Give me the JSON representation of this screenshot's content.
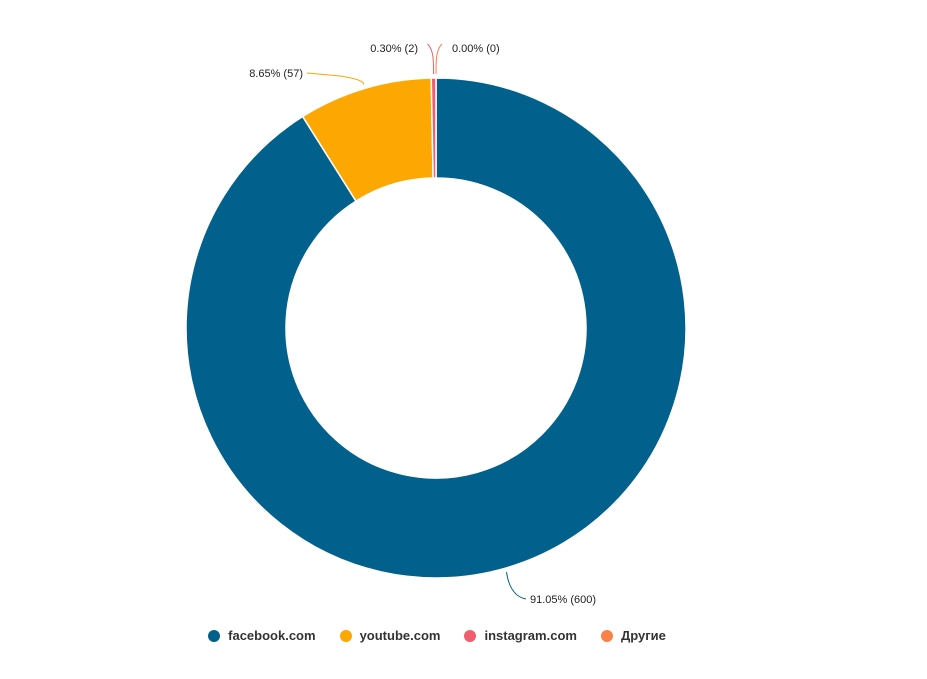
{
  "chart_data": {
    "type": "pie",
    "variant": "donut",
    "title": "",
    "slices": [
      {
        "name": "facebook.com",
        "value": 600,
        "percent": 91.05,
        "label": "91.05% (600)",
        "color": "#02618c"
      },
      {
        "name": "youtube.com",
        "value": 57,
        "percent": 8.65,
        "label": "8.65% (57)",
        "color": "#fca702"
      },
      {
        "name": "instagram.com",
        "value": 2,
        "percent": 0.3,
        "label": "0.30% (2)",
        "color": "#f05d6c"
      },
      {
        "name": "Другие",
        "value": 0,
        "percent": 0.0,
        "label": "0.00% (0)",
        "color": "#fb8147"
      }
    ],
    "legend_position": "bottom"
  },
  "legend": {
    "items": [
      {
        "label": "facebook.com",
        "color": "#02618c"
      },
      {
        "label": "youtube.com",
        "color": "#fca702"
      },
      {
        "label": "instagram.com",
        "color": "#f05d6c"
      },
      {
        "label": "Другие",
        "color": "#fb8147"
      }
    ]
  }
}
